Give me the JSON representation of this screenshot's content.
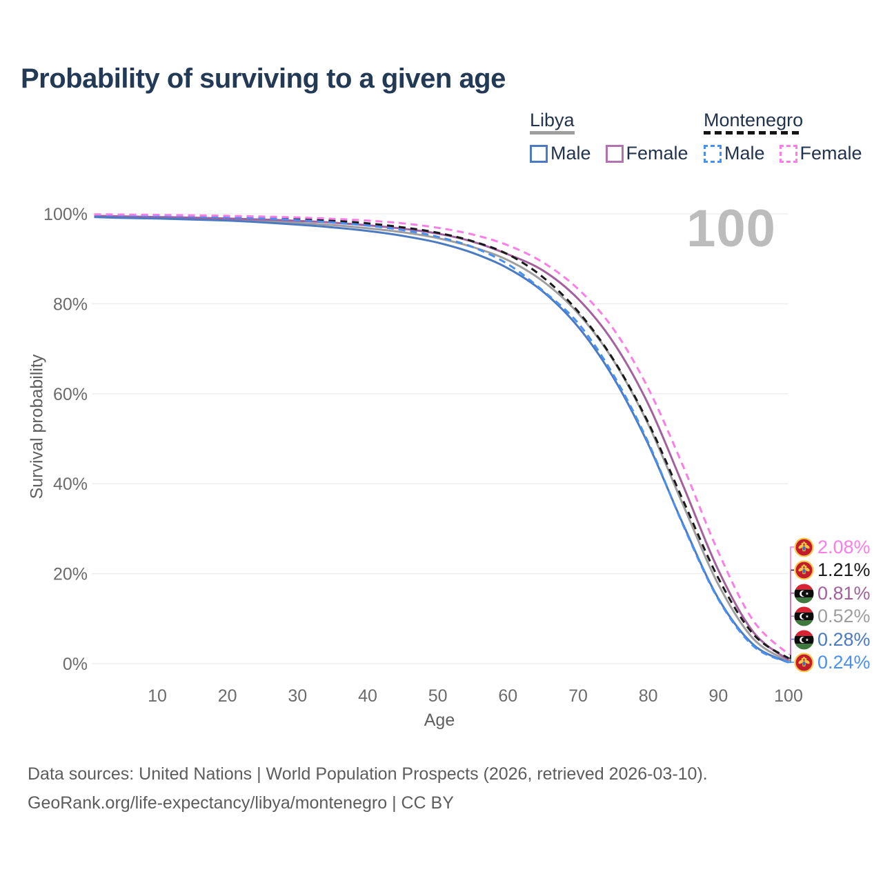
{
  "title": "Probability of surviving to a given age",
  "watermark": "100",
  "legend": {
    "groups": [
      {
        "label": "Libya",
        "line_style": "solid",
        "line_color": "#9e9e9e",
        "items": [
          {
            "label": "Male",
            "color": "#4a7ac2",
            "dashed": false
          },
          {
            "label": "Female",
            "color": "#b173af",
            "dashed": false
          }
        ]
      },
      {
        "label": "Montenegro",
        "line_style": "dashed",
        "line_color": "#151515",
        "items": [
          {
            "label": "Male",
            "color": "#4a8ff2",
            "dashed": true
          },
          {
            "label": "Female",
            "color": "#fb7de5",
            "dashed": true
          }
        ]
      }
    ]
  },
  "chart_data": {
    "type": "line",
    "title": "Probability of surviving to a given age",
    "xlabel": "Age",
    "ylabel": "Survival probability",
    "xlim": [
      0,
      100
    ],
    "ylim": [
      0,
      100
    ],
    "grid": true,
    "x_ticks": [
      10,
      20,
      30,
      40,
      50,
      60,
      70,
      80,
      90,
      100
    ],
    "y_ticks": [
      {
        "value": 0,
        "label": "0%"
      },
      {
        "value": 20,
        "label": "20%"
      },
      {
        "value": 40,
        "label": "40%"
      },
      {
        "value": 60,
        "label": "60%"
      },
      {
        "value": 80,
        "label": "80%"
      },
      {
        "value": 100,
        "label": "100%"
      }
    ],
    "x": [
      1,
      5,
      10,
      15,
      20,
      25,
      30,
      35,
      40,
      45,
      50,
      55,
      60,
      65,
      70,
      75,
      80,
      85,
      90,
      95,
      100
    ],
    "series": [
      {
        "name": "Libya both sexes",
        "country": "libya",
        "sex": "both",
        "color": "#9e9e9e",
        "dashed": false,
        "row": 3,
        "end_label": "0.52%",
        "flag": "libya",
        "values": [
          99.45,
          99.3,
          99.15,
          98.95,
          98.7,
          98.4,
          98.0,
          97.5,
          96.8,
          95.9,
          94.6,
          92.6,
          89.7,
          85.0,
          77.9,
          67.5,
          53.2,
          35.2,
          17.6,
          5.5,
          0.52
        ]
      },
      {
        "name": "Libya female",
        "country": "libya",
        "sex": "female",
        "color": "#a2609e",
        "dashed": false,
        "row": 2,
        "end_label": "0.81%",
        "flag": "libya",
        "values": [
          99.55,
          99.45,
          99.3,
          99.15,
          98.95,
          98.75,
          98.45,
          98.05,
          97.45,
          96.7,
          95.6,
          93.8,
          91.0,
          87.4,
          81.1,
          71.5,
          57.7,
          39.5,
          20.8,
          7.0,
          0.81
        ]
      },
      {
        "name": "Libya male",
        "country": "libya",
        "sex": "male",
        "color": "#4a7ac2",
        "dashed": false,
        "row": 4,
        "end_label": "0.28%",
        "flag": "libya",
        "values": [
          99.3,
          99.1,
          98.95,
          98.75,
          98.5,
          98.1,
          97.6,
          97.0,
          96.2,
          95.1,
          93.6,
          91.3,
          87.9,
          82.7,
          74.9,
          63.7,
          48.8,
          30.9,
          14.5,
          4.2,
          0.28
        ]
      },
      {
        "name": "Montenegro both sexes",
        "country": "montenegro",
        "sex": "both",
        "color": "#1a1a1a",
        "dashed": true,
        "row": 1,
        "end_label": "1.21%",
        "flag": "montenegro",
        "values": [
          99.85,
          99.77,
          99.68,
          99.57,
          99.42,
          99.2,
          98.9,
          98.5,
          97.9,
          97.0,
          95.8,
          93.9,
          91.0,
          85.9,
          78.3,
          67.7,
          53.6,
          36.2,
          19.0,
          6.5,
          1.21
        ]
      },
      {
        "name": "Montenegro male",
        "country": "montenegro",
        "sex": "male",
        "color": "#4a8ff2",
        "dashed": true,
        "row": 5,
        "end_label": "0.24%",
        "flag": "montenegro",
        "values": [
          99.8,
          99.7,
          99.6,
          99.45,
          99.25,
          99.0,
          98.6,
          98.1,
          97.4,
          96.4,
          94.9,
          92.6,
          88.8,
          82.9,
          75.7,
          64.3,
          49.2,
          30.7,
          14.3,
          3.9,
          0.24
        ]
      },
      {
        "name": "Montenegro female",
        "country": "montenegro",
        "sex": "female",
        "color": "#fb7de5",
        "dashed": true,
        "row": 0,
        "end_label": "2.08%",
        "flag": "montenegro",
        "values": [
          99.9,
          99.84,
          99.77,
          99.68,
          99.56,
          99.4,
          99.2,
          98.9,
          98.5,
          97.9,
          96.9,
          95.4,
          93.0,
          89.2,
          83.3,
          74.5,
          61.2,
          43.8,
          24.8,
          9.5,
          2.08
        ]
      }
    ]
  },
  "footer": {
    "line1": "Data sources: United Nations | World Population Prospects (2026, retrieved 2026-03-10).",
    "line2": "GeoRank.org/life-expectancy/libya/montenegro | CC BY"
  }
}
